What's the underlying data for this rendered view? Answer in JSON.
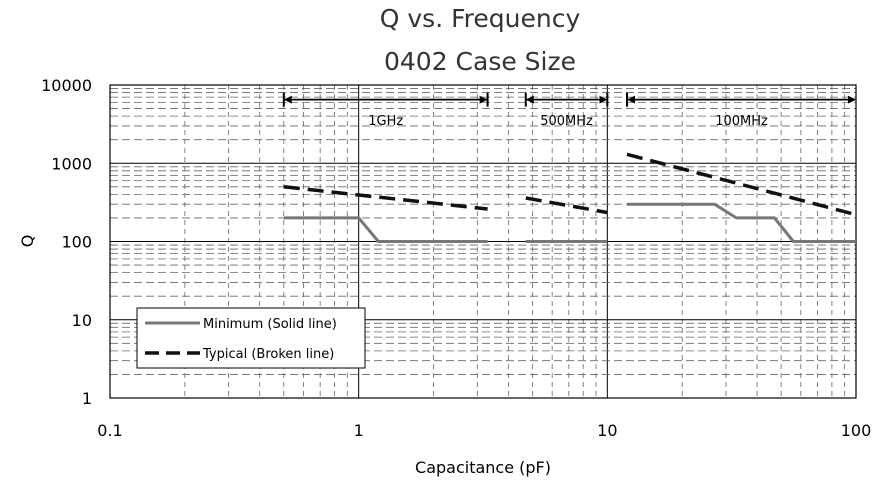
{
  "chart_data": {
    "type": "line",
    "title": "Q vs. Frequency",
    "subtitle": "0402 Case Size",
    "xlabel": "Capacitance (pF)",
    "ylabel": "Q",
    "x_scale": "log",
    "y_scale": "log",
    "xlim": [
      0.1,
      100
    ],
    "ylim": [
      1,
      10000
    ],
    "x_ticks": [
      "0.1",
      "1",
      "10",
      "100"
    ],
    "y_ticks": [
      "1",
      "10",
      "100",
      "1000",
      "10000"
    ],
    "grid": true,
    "legend_position": "bottom-left",
    "colors": {
      "minimum": "#777777",
      "typical": "#111111"
    },
    "bands": [
      {
        "label": "1GHz",
        "x_range": [
          0.5,
          3.3
        ]
      },
      {
        "label": "500MHz",
        "x_range": [
          4.7,
          10
        ]
      },
      {
        "label": "100MHz",
        "x_range": [
          12,
          100
        ]
      }
    ],
    "series": [
      {
        "name": "Minimum (Solid line)",
        "style": "solid",
        "segments": [
          [
            [
              0.5,
              200
            ],
            [
              1.0,
              200
            ],
            [
              1.2,
              100
            ],
            [
              3.3,
              100
            ]
          ],
          [
            [
              4.7,
              100
            ],
            [
              10,
              100
            ]
          ],
          [
            [
              12,
              300
            ],
            [
              27,
              300
            ],
            [
              33,
              200
            ],
            [
              47,
              200
            ],
            [
              56,
              100
            ],
            [
              100,
              100
            ]
          ]
        ]
      },
      {
        "name": "Typical (Broken line)",
        "style": "dashed",
        "segments": [
          [
            [
              0.5,
              500
            ],
            [
              3.3,
              260
            ]
          ],
          [
            [
              4.7,
              360
            ],
            [
              10,
              235
            ]
          ],
          [
            [
              12,
              1300
            ],
            [
              100,
              220
            ]
          ]
        ]
      }
    ]
  }
}
